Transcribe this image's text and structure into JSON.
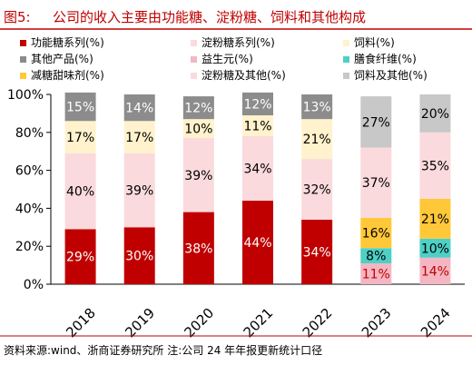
{
  "figure_label": "图5:",
  "figure_title": "公司的收入主要由功能糖、淀粉糖、饲料和其他构成",
  "source_note": "资料来源:wind、浙商证券研究所 注:公司 24 年年报更新统计口径",
  "chart_data": {
    "type": "bar",
    "stacked": true,
    "categories": [
      "2018",
      "2019",
      "2020",
      "2021",
      "2022",
      "2023",
      "2024"
    ],
    "ylim": [
      0,
      100
    ],
    "yticks": [
      "0%",
      "20%",
      "40%",
      "60%",
      "80%",
      "100%"
    ],
    "ytick_values": [
      0,
      20,
      40,
      60,
      80,
      100
    ],
    "legend_position": "top",
    "series": [
      {
        "name": "功能糖系列(%)",
        "color": "#c00000",
        "values": [
          29,
          30,
          38,
          44,
          34,
          null,
          null
        ]
      },
      {
        "name": "淀粉糖系列(%)",
        "color": "#fadadd",
        "values": [
          40,
          39,
          39,
          34,
          32,
          null,
          null
        ]
      },
      {
        "name": "饲料(%)",
        "color": "#fff2cc",
        "values": [
          17,
          17,
          10,
          11,
          21,
          null,
          null
        ]
      },
      {
        "name": "其他产品(%)",
        "color": "#8c8c8c",
        "values": [
          15,
          14,
          12,
          12,
          13,
          null,
          null
        ]
      },
      {
        "name": "益生元(%)",
        "color": "#f4b6c2",
        "values": [
          null,
          null,
          null,
          null,
          null,
          11,
          14
        ]
      },
      {
        "name": "膳食纤维(%)",
        "color": "#4dd0c6",
        "values": [
          null,
          null,
          null,
          null,
          null,
          8,
          10
        ]
      },
      {
        "name": "减糖甜味剂(%)",
        "color": "#ffc838",
        "values": [
          null,
          null,
          null,
          null,
          null,
          16,
          21
        ]
      },
      {
        "name": "淀粉糖及其他(%)",
        "color": "#fadadd",
        "values": [
          null,
          null,
          null,
          null,
          null,
          37,
          35
        ]
      },
      {
        "name": "饲料及其他(%)",
        "color": "#c8c8c8",
        "values": [
          null,
          null,
          null,
          null,
          null,
          27,
          20
        ]
      }
    ],
    "stack_order": [
      [
        "功能糖系列(%)",
        "淀粉糖系列(%)",
        "饲料(%)",
        "其他产品(%)"
      ],
      [
        "益生元(%)",
        "膳食纤维(%)",
        "减糖甜味剂(%)",
        "淀粉糖及其他(%)",
        "饲料及其他(%)"
      ]
    ],
    "label_colors": {
      "功能糖系列(%)": "#ffffff",
      "淀粉糖系列(%)": "#000000",
      "饲料(%)": "#000000",
      "其他产品(%)": "#ffffff",
      "益生元(%)": "#c00000",
      "膳食纤维(%)": "#000000",
      "减糖甜味剂(%)": "#000000",
      "淀粉糖及其他(%)": "#000000",
      "饲料及其他(%)": "#000000"
    },
    "title_color": "#c00000"
  }
}
